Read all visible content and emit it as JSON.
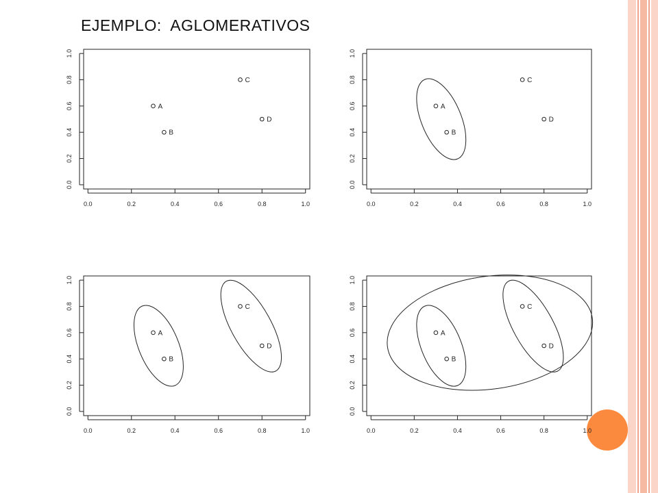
{
  "title": "EJEMPLO:  AGLOMERATIVOS",
  "colors": {
    "background": "#ffffff",
    "accent_circle": "#fb8a3f",
    "side_bar_light": "#fbd6c8",
    "side_bar_mid": "#f6b9a2",
    "side_bar_line": "#f0a28a",
    "ink": "#222222"
  },
  "chart_data": [
    {
      "type": "scatter",
      "title": "",
      "xlabel": "",
      "ylabel": "",
      "xlim": [
        0,
        1
      ],
      "ylim": [
        0,
        1
      ],
      "x_ticks": [
        "0.0",
        "0.2",
        "0.4",
        "0.6",
        "0.8",
        "1.0"
      ],
      "y_ticks": [
        "0.0",
        "0.2",
        "0.4",
        "0.6",
        "0.8",
        "1.0"
      ],
      "grid": false,
      "points": [
        {
          "label": "A",
          "x": 0.3,
          "y": 0.6
        },
        {
          "label": "B",
          "x": 0.35,
          "y": 0.4
        },
        {
          "label": "C",
          "x": 0.7,
          "y": 0.8
        },
        {
          "label": "D",
          "x": 0.8,
          "y": 0.5
        }
      ],
      "clusters": []
    },
    {
      "type": "scatter",
      "title": "",
      "xlabel": "",
      "ylabel": "",
      "xlim": [
        0,
        1
      ],
      "ylim": [
        0,
        1
      ],
      "x_ticks": [
        "0.0",
        "0.2",
        "0.4",
        "0.6",
        "0.8",
        "1.0"
      ],
      "y_ticks": [
        "0.0",
        "0.2",
        "0.4",
        "0.6",
        "0.8",
        "1.0"
      ],
      "grid": false,
      "points": [
        {
          "label": "A",
          "x": 0.3,
          "y": 0.6
        },
        {
          "label": "B",
          "x": 0.35,
          "y": 0.4
        },
        {
          "label": "C",
          "x": 0.7,
          "y": 0.8
        },
        {
          "label": "D",
          "x": 0.8,
          "y": 0.5
        }
      ],
      "clusters": [
        [
          "A",
          "B"
        ]
      ]
    },
    {
      "type": "scatter",
      "title": "",
      "xlabel": "",
      "ylabel": "",
      "xlim": [
        0,
        1
      ],
      "ylim": [
        0,
        1
      ],
      "x_ticks": [
        "0.0",
        "0.2",
        "0.4",
        "0.6",
        "0.8",
        "1.0"
      ],
      "y_ticks": [
        "0.0",
        "0.2",
        "0.4",
        "0.6",
        "0.8",
        "1.0"
      ],
      "grid": false,
      "points": [
        {
          "label": "A",
          "x": 0.3,
          "y": 0.6
        },
        {
          "label": "B",
          "x": 0.35,
          "y": 0.4
        },
        {
          "label": "C",
          "x": 0.7,
          "y": 0.8
        },
        {
          "label": "D",
          "x": 0.8,
          "y": 0.5
        }
      ],
      "clusters": [
        [
          "A",
          "B"
        ],
        [
          "C",
          "D"
        ]
      ]
    },
    {
      "type": "scatter",
      "title": "",
      "xlabel": "",
      "ylabel": "",
      "xlim": [
        0,
        1
      ],
      "ylim": [
        0,
        1
      ],
      "x_ticks": [
        "0.0",
        "0.2",
        "0.4",
        "0.6",
        "0.8",
        "1.0"
      ],
      "y_ticks": [
        "0.0",
        "0.2",
        "0.4",
        "0.6",
        "0.8",
        "1.0"
      ],
      "grid": false,
      "points": [
        {
          "label": "A",
          "x": 0.3,
          "y": 0.6
        },
        {
          "label": "B",
          "x": 0.35,
          "y": 0.4
        },
        {
          "label": "C",
          "x": 0.7,
          "y": 0.8
        },
        {
          "label": "D",
          "x": 0.8,
          "y": 0.5
        }
      ],
      "clusters": [
        [
          "A",
          "B"
        ],
        [
          "C",
          "D"
        ],
        [
          "A",
          "B",
          "C",
          "D"
        ]
      ]
    }
  ]
}
